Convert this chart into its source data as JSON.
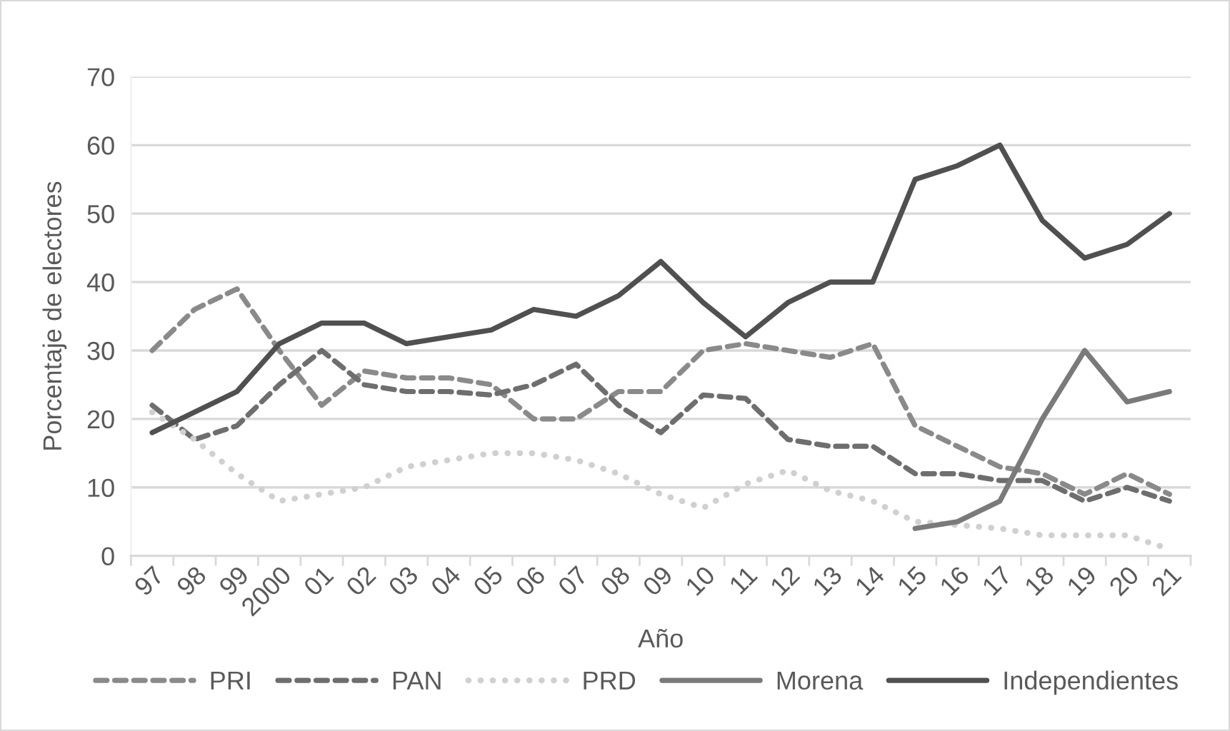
{
  "chart_data": {
    "type": "line",
    "xlabel": "Año",
    "ylabel": "Porcentaje de electores",
    "categories": [
      "97",
      "98",
      "99",
      "2000",
      "01",
      "02",
      "03",
      "04",
      "05",
      "06",
      "07",
      "08",
      "09",
      "10",
      "11",
      "12",
      "13",
      "14",
      "15",
      "16",
      "17",
      "18",
      "19",
      "20",
      "21"
    ],
    "ylim": [
      0,
      70
    ],
    "yticks": [
      0,
      10,
      20,
      30,
      40,
      50,
      60,
      70
    ],
    "grid": "y",
    "legend": "bottom",
    "series": [
      {
        "name": "PRI",
        "color": "#8a8a8a",
        "line_style": "dashed",
        "values": [
          30,
          36,
          39,
          30,
          22,
          27,
          26,
          26,
          25,
          20,
          20,
          24,
          24,
          30,
          31,
          30,
          29,
          31,
          19,
          16,
          13,
          12,
          9,
          12,
          9
        ]
      },
      {
        "name": "PAN",
        "color": "#6e6e6e",
        "line_style": "dashed",
        "values": [
          22,
          17,
          19,
          25,
          30,
          25,
          24,
          24,
          23.5,
          25,
          28,
          22,
          18,
          23.5,
          23,
          17,
          16,
          16,
          12,
          12,
          11,
          11,
          8,
          10,
          8
        ]
      },
      {
        "name": "PRD",
        "color": "#d0d0d0",
        "line_style": "dotted",
        "values": [
          21,
          17,
          12,
          8,
          9,
          10,
          13,
          14,
          15,
          15,
          14,
          12,
          9,
          7,
          10.5,
          12.5,
          9.5,
          8,
          5,
          4.5,
          4,
          3,
          3,
          3,
          1
        ]
      },
      {
        "name": "Morena",
        "color": "#7a7a7a",
        "line_style": "solid",
        "values": [
          null,
          null,
          null,
          null,
          null,
          null,
          null,
          null,
          null,
          null,
          null,
          null,
          null,
          null,
          null,
          null,
          null,
          null,
          4,
          5,
          8,
          20,
          30,
          22.5,
          24
        ]
      },
      {
        "name": "Independientes",
        "color": "#505050",
        "line_style": "solid",
        "values": [
          18,
          21,
          24,
          31,
          34,
          34,
          31,
          32,
          33,
          36,
          35,
          38,
          43,
          37,
          32,
          37,
          40,
          40,
          55,
          57,
          60,
          49,
          43.5,
          45.5,
          50
        ]
      }
    ]
  }
}
